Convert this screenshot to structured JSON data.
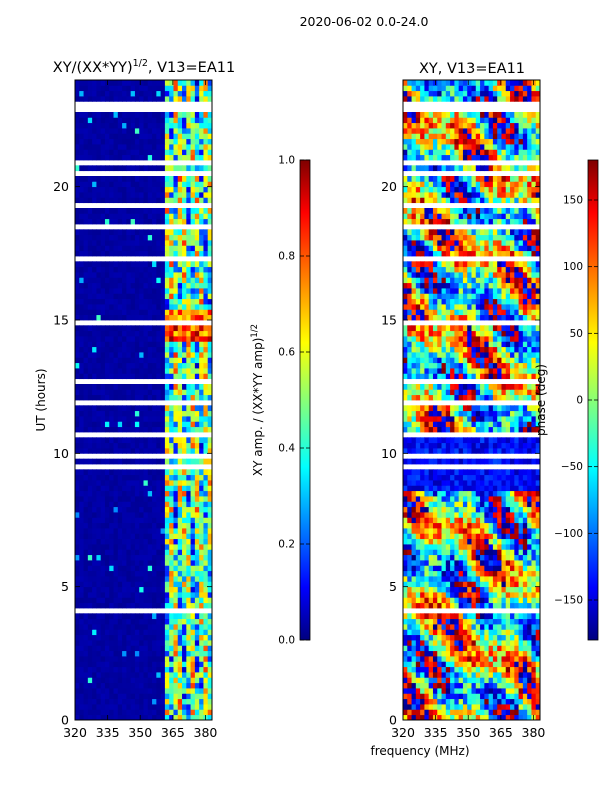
{
  "suptitle": "2020-06-02 0.0-24.0",
  "x_label": "frequency (MHz)",
  "colors": {
    "jet": [
      "#00007f",
      "#0000ff",
      "#007fff",
      "#00ffff",
      "#7fff7f",
      "#ffff00",
      "#ff7f00",
      "#ff0000",
      "#7f0000"
    ],
    "background": "#ffffff",
    "gap": "#ffffff"
  },
  "chart_data": [
    {
      "type": "heatmap",
      "title_main": "XY/(XX*YY)",
      "title_exp": "1/2",
      "title_suffix": ", V13=EA11",
      "ylabel": "UT (hours)",
      "xlabel": "",
      "xlim": [
        320,
        383
      ],
      "ylim": [
        0,
        24
      ],
      "xticks": [
        320,
        335,
        350,
        365,
        380
      ],
      "yticks": [
        0,
        5,
        10,
        15,
        20
      ],
      "colorbar": {
        "label_main": "XY amp. / (XX*YY amp)",
        "label_exp": "1/2",
        "range": [
          0.0,
          1.0
        ],
        "ticks": [
          "0.0",
          "0.2",
          "0.4",
          "0.6",
          "0.8",
          "1.0"
        ]
      },
      "description_values": {
        "low_band_mhz": [
          320,
          361
        ],
        "low_band_level": 0.1,
        "high_band_mhz": [
          361,
          383
        ],
        "high_band_level": 0.45,
        "rfi_hours": [
          14.2,
          15.3
        ],
        "rfi_level": 0.9
      }
    },
    {
      "type": "heatmap",
      "title": "XY, V13=EA11",
      "ylabel": "",
      "xlabel": "frequency (MHz)",
      "xlim": [
        320,
        383
      ],
      "ylim": [
        0,
        24
      ],
      "xticks": [
        320,
        335,
        350,
        365,
        380
      ],
      "yticks": [
        0,
        5,
        10,
        15,
        20
      ],
      "colorbar": {
        "label": "phase (deg)",
        "range": [
          -180,
          180
        ],
        "ticks": [
          "−150",
          "−100",
          "−50",
          "0",
          "50",
          "100",
          "150"
        ],
        "tick_values": [
          -150,
          -100,
          -50,
          0,
          50,
          100,
          150
        ]
      }
    }
  ]
}
